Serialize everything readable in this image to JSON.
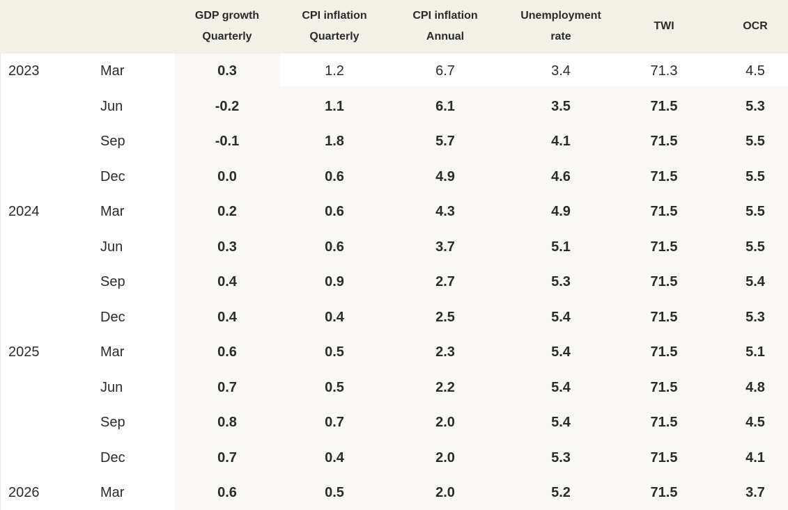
{
  "table": {
    "header": [
      [
        "GDP growth",
        "Quarterly"
      ],
      [
        "CPI inflation",
        "Quarterly"
      ],
      [
        "CPI inflation",
        "Annual"
      ],
      [
        "Unemployment",
        "rate"
      ],
      [
        "TWI"
      ],
      [
        "OCR"
      ]
    ],
    "rows": [
      {
        "year": "2023",
        "quarter": "Mar",
        "values": [
          "0.3",
          "1.2",
          "6.7",
          "3.4",
          "71.3",
          "4.5"
        ]
      },
      {
        "quarter": "Jun",
        "values": [
          "-0.2",
          "1.1",
          "6.1",
          "3.5",
          "71.5",
          "5.3"
        ]
      },
      {
        "quarter": "Sep",
        "values": [
          "-0.1",
          "1.8",
          "5.7",
          "4.1",
          "71.5",
          "5.5"
        ]
      },
      {
        "quarter": "Dec",
        "values": [
          "0.0",
          "0.6",
          "4.9",
          "4.6",
          "71.5",
          "5.5"
        ]
      },
      {
        "year": "2024",
        "quarter": "Mar",
        "values": [
          "0.2",
          "0.6",
          "4.3",
          "4.9",
          "71.5",
          "5.5"
        ]
      },
      {
        "quarter": "Jun",
        "values": [
          "0.3",
          "0.6",
          "3.7",
          "5.1",
          "71.5",
          "5.5"
        ]
      },
      {
        "quarter": "Sep",
        "values": [
          "0.4",
          "0.9",
          "2.7",
          "5.3",
          "71.5",
          "5.4"
        ]
      },
      {
        "quarter": "Dec",
        "values": [
          "0.4",
          "0.4",
          "2.5",
          "5.4",
          "71.5",
          "5.3"
        ]
      },
      {
        "year": "2025",
        "quarter": "Mar",
        "values": [
          "0.6",
          "0.5",
          "2.3",
          "5.4",
          "71.5",
          "5.1"
        ]
      },
      {
        "quarter": "Jun",
        "values": [
          "0.7",
          "0.5",
          "2.2",
          "5.4",
          "71.5",
          "4.8"
        ]
      },
      {
        "quarter": "Sep",
        "values": [
          "0.8",
          "0.7",
          "2.0",
          "5.4",
          "71.5",
          "4.5"
        ]
      },
      {
        "quarter": "Dec",
        "values": [
          "0.7",
          "0.4",
          "2.0",
          "5.3",
          "71.5",
          "4.1"
        ]
      },
      {
        "year": "2026",
        "quarter": "Mar",
        "values": [
          "0.6",
          "0.5",
          "2.0",
          "5.2",
          "71.5",
          "3.7"
        ]
      }
    ]
  }
}
